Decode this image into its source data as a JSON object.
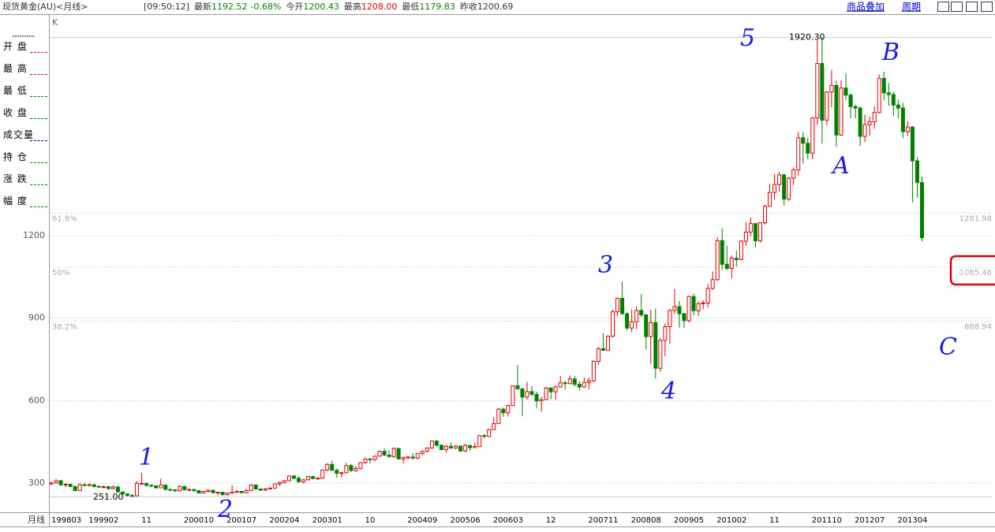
{
  "header": {
    "symbol": "现货黄金(AU)<月线>",
    "time": "[09:50:12]",
    "last_label": "最新",
    "last": "1192.52",
    "change": "-0.68%",
    "open_label": "今开",
    "open": "1200.43",
    "high_label": "最高",
    "high": "1208.00",
    "low_label": "最低",
    "low": "1179.83",
    "prev_label": "昨收",
    "prev": "1200.69",
    "tools": [
      "商品叠加",
      "周期"
    ]
  },
  "sidebar": [
    "开 盘",
    "最 高",
    "最 低",
    "收 盘",
    "成交量",
    "持 仓",
    "涨 跌",
    "幅 度"
  ],
  "chart_data": {
    "type": "candlestick",
    "corner_label": "K",
    "x_axis_label": "月线",
    "categories": [
      "199803",
      null,
      null,
      null,
      null,
      null,
      null,
      null,
      null,
      null,
      null,
      "199902",
      null,
      null,
      null,
      null,
      null,
      null,
      null,
      null,
      "11",
      null,
      null,
      null,
      null,
      null,
      null,
      null,
      null,
      null,
      null,
      "200010",
      null,
      null,
      null,
      null,
      null,
      null,
      null,
      null,
      "200107",
      null,
      null,
      null,
      null,
      null,
      null,
      null,
      null,
      "200204",
      null,
      null,
      null,
      null,
      null,
      null,
      null,
      null,
      "200301",
      null,
      null,
      null,
      null,
      null,
      null,
      null,
      null,
      "10",
      null,
      null,
      null,
      null,
      null,
      null,
      null,
      null,
      null,
      null,
      "200409",
      null,
      null,
      null,
      null,
      null,
      null,
      null,
      null,
      "200506",
      null,
      null,
      null,
      null,
      null,
      null,
      null,
      null,
      "200603",
      null,
      null,
      null,
      null,
      null,
      null,
      null,
      null,
      "12",
      null,
      null,
      null,
      null,
      null,
      null,
      null,
      null,
      null,
      null,
      "200711",
      null,
      null,
      null,
      null,
      null,
      null,
      null,
      null,
      "200808",
      null,
      null,
      null,
      null,
      null,
      null,
      null,
      null,
      "200905",
      null,
      null,
      null,
      null,
      null,
      null,
      null,
      null,
      "201002",
      null,
      null,
      null,
      null,
      null,
      null,
      null,
      null,
      "11",
      null,
      null,
      null,
      null,
      null,
      null,
      null,
      null,
      null,
      null,
      "201110",
      null,
      null,
      null,
      null,
      null,
      null,
      null,
      null,
      "201207",
      null,
      null,
      null,
      null,
      null,
      null,
      null,
      null,
      "201304",
      null,
      null
    ],
    "open": [
      297,
      301,
      309,
      294,
      296,
      288,
      273,
      294,
      292,
      294,
      288,
      287,
      287,
      280,
      286,
      268,
      261,
      255,
      254,
      299,
      299,
      292,
      290,
      283,
      293,
      277,
      275,
      272,
      288,
      276,
      277,
      273,
      264,
      270,
      274,
      265,
      267,
      258,
      264,
      267,
      270,
      265,
      273,
      293,
      279,
      275,
      279,
      282,
      297,
      302,
      309,
      326,
      318,
      305,
      312,
      324,
      317,
      318,
      348,
      368,
      347,
      336,
      338,
      364,
      346,
      354,
      375,
      388,
      386,
      398,
      416,
      402,
      397,
      426,
      388,
      394,
      395,
      391,
      408,
      416,
      428,
      453,
      438,
      422,
      434,
      428,
      435,
      417,
      437,
      429,
      433,
      473,
      470,
      495,
      517,
      569,
      556,
      582,
      654,
      643,
      613,
      633,
      623,
      599,
      604,
      646,
      632,
      650,
      665,
      662,
      679,
      659,
      650,
      666,
      672,
      743,
      789,
      783,
      834,
      923,
      972,
      916,
      864,
      887,
      928,
      912,
      833,
      884,
      718,
      819,
      869,
      928,
      942,
      916,
      891,
      979,
      927,
      953,
      955,
      1008,
      1040,
      1182,
      1096,
      1081,
      1118,
      1113,
      1180,
      1213,
      1244,
      1181,
      1247,
      1307,
      1357,
      1386,
      1421,
      1333,
      1409,
      1439,
      1556,
      1536,
      1500,
      1628,
      1826,
      1620,
      1722,
      1746,
      1566,
      1737,
      1711,
      1669,
      1664,
      1561,
      1604,
      1614,
      1648,
      1772,
      1719,
      1713,
      1675,
      1664,
      1578,
      1595,
      1472,
      1393
    ],
    "high": [
      305,
      315,
      311,
      300,
      298,
      290,
      300,
      301,
      300,
      297,
      293,
      292,
      290,
      292,
      290,
      270,
      262,
      261,
      307,
      338,
      302,
      296,
      292,
      316,
      295,
      281,
      279,
      292,
      290,
      280,
      278,
      274,
      272,
      277,
      275,
      269,
      268,
      266,
      293,
      274,
      272,
      279,
      296,
      295,
      280,
      282,
      285,
      298,
      305,
      311,
      328,
      330,
      325,
      315,
      325,
      325,
      322,
      350,
      373,
      382,
      353,
      341,
      374,
      369,
      362,
      376,
      392,
      391,
      400,
      418,
      427,
      419,
      430,
      428,
      396,
      398,
      409,
      410,
      419,
      430,
      455,
      457,
      440,
      439,
      447,
      439,
      436,
      443,
      439,
      447,
      475,
      479,
      497,
      540,
      573,
      575,
      586,
      654,
      730,
      645,
      668,
      653,
      633,
      614,
      650,
      648,
      654,
      690,
      672,
      692,
      690,
      672,
      684,
      685,
      746,
      795,
      845,
      838,
      932,
      975,
      1033,
      921,
      931,
      944,
      987,
      914,
      930,
      935,
      828,
      880,
      933,
      1006,
      962,
      920,
      982,
      989,
      960,
      966,
      1025,
      1070,
      1195,
      1227,
      1163,
      1128,
      1145,
      1183,
      1249,
      1266,
      1245,
      1248,
      1312,
      1388,
      1424,
      1432,
      1424,
      1414,
      1448,
      1577,
      1577,
      1556,
      1632,
      1913,
      1920.3,
      1726,
      1803,
      1764,
      1764,
      1791,
      1718,
      1677,
      1670,
      1640,
      1633,
      1670,
      1787,
      1796,
      1755,
      1723,
      1694,
      1683,
      1616,
      1598,
      1487,
      1416
    ],
    "low": [
      292,
      298,
      289,
      286,
      285,
      271,
      272,
      288,
      290,
      284,
      284,
      281,
      277,
      278,
      267,
      257,
      252,
      251,
      253,
      295,
      288,
      285,
      280,
      282,
      275,
      270,
      268,
      271,
      275,
      271,
      268,
      263,
      263,
      267,
      263,
      256,
      256,
      255,
      263,
      265,
      264,
      264,
      271,
      276,
      271,
      272,
      277,
      280,
      290,
      299,
      307,
      314,
      302,
      299,
      310,
      314,
      315,
      316,
      343,
      345,
      320,
      321,
      336,
      341,
      341,
      350,
      370,
      371,
      380,
      397,
      398,
      392,
      390,
      386,
      371,
      387,
      386,
      387,
      400,
      412,
      425,
      433,
      419,
      411,
      425,
      424,
      414,
      413,
      418,
      428,
      431,
      463,
      469,
      493,
      515,
      541,
      542,
      581,
      640,
      543,
      604,
      615,
      573,
      560,
      604,
      605,
      602,
      648,
      640,
      660,
      651,
      637,
      646,
      641,
      668,
      730,
      781,
      782,
      830,
      907,
      913,
      855,
      849,
      860,
      904,
      786,
      735,
      681,
      705,
      761,
      807,
      916,
      866,
      865,
      885,
      910,
      908,
      933,
      939,
      1003,
      1035,
      1075,
      1075,
      1045,
      1088,
      1111,
      1163,
      1197,
      1157,
      1175,
      1240,
      1309,
      1330,
      1360,
      1309,
      1326,
      1383,
      1417,
      1462,
      1478,
      1478,
      1603,
      1535,
      1600,
      1667,
      1523,
      1563,
      1694,
      1627,
      1627,
      1527,
      1540,
      1564,
      1589,
      1645,
      1692,
      1672,
      1635,
      1627,
      1555,
      1562,
      1321,
      1338,
      1179.83
    ],
    "close": [
      301,
      309,
      294,
      296,
      288,
      273,
      294,
      292,
      294,
      288,
      287,
      287,
      280,
      286,
      268,
      261,
      255,
      254,
      299,
      299,
      292,
      290,
      283,
      293,
      277,
      275,
      272,
      288,
      276,
      277,
      273,
      264,
      270,
      274,
      265,
      267,
      258,
      264,
      267,
      270,
      265,
      273,
      293,
      279,
      275,
      279,
      282,
      297,
      302,
      309,
      326,
      318,
      305,
      312,
      324,
      317,
      318,
      348,
      368,
      347,
      336,
      338,
      364,
      346,
      354,
      375,
      388,
      386,
      398,
      416,
      402,
      397,
      426,
      388,
      394,
      395,
      391,
      408,
      416,
      428,
      453,
      438,
      422,
      434,
      428,
      435,
      417,
      437,
      429,
      433,
      473,
      470,
      495,
      517,
      569,
      556,
      582,
      654,
      643,
      613,
      633,
      623,
      599,
      604,
      646,
      632,
      650,
      665,
      662,
      679,
      659,
      650,
      666,
      672,
      743,
      789,
      783,
      834,
      923,
      972,
      916,
      864,
      887,
      928,
      912,
      833,
      884,
      718,
      819,
      869,
      928,
      942,
      916,
      891,
      979,
      927,
      953,
      955,
      1008,
      1040,
      1182,
      1096,
      1081,
      1118,
      1113,
      1180,
      1213,
      1244,
      1181,
      1247,
      1307,
      1357,
      1386,
      1421,
      1333,
      1409,
      1439,
      1556,
      1536,
      1500,
      1628,
      1826,
      1620,
      1722,
      1746,
      1566,
      1737,
      1711,
      1669,
      1664,
      1561,
      1604,
      1614,
      1648,
      1772,
      1719,
      1713,
      1675,
      1664,
      1578,
      1595,
      1472,
      1393,
      1192.52
    ],
    "up_color": "#e00000",
    "down_color": "#008000",
    "ylim": [
      194,
      1948
    ],
    "yticks": [
      300,
      600,
      900,
      1200
    ],
    "grid": true,
    "high_marker": {
      "value": 1920.3,
      "label": "1920.30"
    },
    "low_marker": {
      "value": 251,
      "label": "251.00"
    },
    "fib_levels": [
      {
        "label": "61.8%",
        "value": 1281.98
      },
      {
        "label": "50%",
        "value": 1085.46
      },
      {
        "label": "38.2%",
        "value": 888.94
      }
    ],
    "annotations": [
      "1",
      "2",
      "3",
      "4",
      "5",
      "A",
      "B",
      "C"
    ]
  }
}
